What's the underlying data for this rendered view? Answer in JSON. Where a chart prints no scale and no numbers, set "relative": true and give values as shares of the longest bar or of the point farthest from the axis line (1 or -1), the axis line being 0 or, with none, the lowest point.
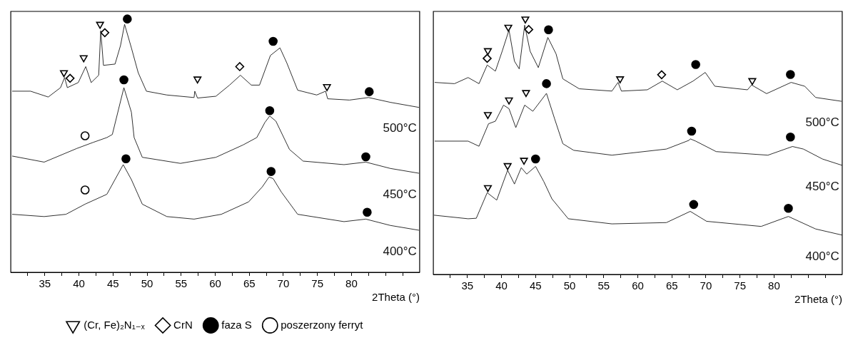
{
  "chart_data": [
    {
      "type": "line",
      "relative": true,
      "xlabel": "2Theta (°)",
      "xlim": [
        30,
        90
      ],
      "xticks": [
        {
          "value": 32.5,
          "label": null
        },
        35,
        {
          "value": 37.5,
          "label": null
        },
        40,
        {
          "value": 42.5,
          "label": null
        },
        45,
        {
          "value": 47.5,
          "label": null
        },
        50,
        {
          "value": 52.5,
          "label": null
        },
        55,
        {
          "value": 57.5,
          "label": null
        },
        60,
        {
          "value": 62.5,
          "label": null
        },
        65,
        {
          "value": 67.5,
          "label": null
        },
        70,
        {
          "value": 72.5,
          "label": null
        },
        75,
        {
          "value": 77.5,
          "label": null
        },
        80,
        {
          "value": 82.5,
          "label": null
        },
        {
          "value": 85,
          "label": null
        },
        {
          "value": 87.5,
          "label": null
        }
      ],
      "legend": "bottom",
      "series": [
        {
          "name": "500°C",
          "color": "#1a1a1a",
          "x": [
            30.2,
            32.9,
            35.5,
            37.3,
            37.9,
            38.3,
            39.9,
            41.0,
            41.8,
            42.9,
            43.2,
            43.6,
            45.3,
            46.1,
            46.7,
            47.7,
            48.7,
            49.9,
            52.9,
            56.9,
            57.0,
            57.4,
            60.1,
            62.1,
            63.7,
            65.3,
            66.5,
            68.1,
            69.5,
            70.5,
            72.1,
            74.9,
            76.2,
            76.5,
            79.7,
            82.5,
            85.7,
            89.9
          ],
          "values": [
            0.715,
            0.715,
            0.692,
            0.729,
            0.769,
            0.729,
            0.749,
            0.812,
            0.749,
            0.778,
            0.954,
            0.817,
            0.822,
            0.895,
            0.979,
            0.886,
            0.788,
            0.715,
            0.7,
            0.69,
            0.715,
            0.688,
            0.695,
            0.739,
            0.778,
            0.739,
            0.739,
            0.856,
            0.886,
            0.827,
            0.719,
            0.7,
            0.715,
            0.685,
            0.68,
            0.69,
            0.671,
            0.651
          ]
        },
        {
          "name": "450°C",
          "color": "#1a1a1a",
          "x": [
            30.2,
            34.9,
            39.7,
            42.1,
            44.1,
            44.9,
            46.6,
            47.7,
            48.1,
            49.3,
            54.9,
            60.1,
            64.1,
            66.1,
            67.3,
            68.0,
            68.9,
            70.9,
            72.9,
            78.9,
            82.1,
            85.7,
            89.9
          ],
          "values": [
            0.459,
            0.435,
            0.489,
            0.513,
            0.532,
            0.544,
            0.729,
            0.632,
            0.532,
            0.454,
            0.43,
            0.454,
            0.503,
            0.532,
            0.592,
            0.617,
            0.597,
            0.485,
            0.439,
            0.425,
            0.435,
            0.41,
            0.391
          ]
        },
        {
          "name": "400°C",
          "color": "#1a1a1a",
          "x": [
            30.2,
            34.9,
            38.1,
            40.9,
            44.1,
            46.5,
            47.7,
            49.3,
            52.9,
            56.9,
            60.9,
            64.9,
            66.9,
            67.9,
            68.5,
            69.7,
            72.1,
            78.9,
            82.1,
            85.7,
            89.9
          ],
          "values": [
            0.229,
            0.22,
            0.229,
            0.269,
            0.308,
            0.425,
            0.366,
            0.269,
            0.22,
            0.21,
            0.229,
            0.278,
            0.337,
            0.376,
            0.37,
            0.317,
            0.229,
            0.2,
            0.21,
            0.185,
            0.166
          ]
        },
        {
          "type": "scatter",
          "name": "(Cr, Fe)₂N₁₋ₓ",
          "marker": "triangle",
          "color": "#ffffff",
          "x": [
            37.8,
            40.7,
            43.1,
            57.4,
            76.4
          ],
          "values": [
            0.788,
            0.847,
            0.979,
            0.763,
            0.733
          ]
        },
        {
          "type": "scatter",
          "name": "CrN",
          "marker": "diamond",
          "color": "#ffffff",
          "x": [
            38.7,
            43.8,
            63.6
          ],
          "values": [
            0.766,
            0.946,
            0.812
          ]
        },
        {
          "type": "scatter",
          "name": "faza S",
          "marker": "circle",
          "color": "#000000",
          "x": [
            47.1,
            68.5,
            82.6,
            46.6,
            68.0,
            82.1,
            46.9,
            68.2,
            82.3
          ],
          "values": [
            1.0,
            0.912,
            0.713,
            0.76,
            0.638,
            0.456,
            0.448,
            0.398,
            0.237
          ]
        },
        {
          "type": "scatter",
          "name": "poszerzony ferryt",
          "marker": "circle",
          "color": "#ffffff",
          "x": [
            40.9,
            40.9
          ],
          "values": [
            0.539,
            0.325
          ]
        }
      ]
    },
    {
      "type": "line",
      "relative": true,
      "xlabel": "2Theta (°)",
      "xlim": [
        30,
        90
      ],
      "xticks": [
        {
          "value": 32.5,
          "label": null
        },
        35,
        {
          "value": 37.5,
          "label": null
        },
        40,
        {
          "value": 42.5,
          "label": null
        },
        45,
        {
          "value": 47.5,
          "label": null
        },
        50,
        {
          "value": 52.5,
          "label": null
        },
        55,
        {
          "value": 57.5,
          "label": null
        },
        60,
        {
          "value": 62.5,
          "label": null
        },
        65,
        {
          "value": 67.5,
          "label": null
        },
        70,
        {
          "value": 72.5,
          "label": null
        },
        75,
        {
          "value": 77.5,
          "label": null
        },
        80,
        {
          "value": 82.5,
          "label": null
        },
        {
          "value": 85,
          "label": null
        },
        {
          "value": 87.5,
          "label": null
        }
      ],
      "series": [
        {
          "name": "500°C",
          "color": "#1a1a1a",
          "x": [
            30.2,
            33.1,
            35.1,
            36.7,
            37.9,
            39.1,
            40.1,
            41.1,
            41.9,
            42.6,
            43.4,
            44.2,
            45.4,
            46.8,
            48.0,
            49.0,
            51.4,
            56.2,
            57.1,
            57.6,
            61.4,
            63.6,
            65.8,
            68.1,
            69.9,
            71.3,
            76.1,
            76.7,
            78.9,
            82.5,
            84.5,
            86.1,
            89.9
          ],
          "values": [
            0.752,
            0.747,
            0.771,
            0.747,
            0.82,
            0.796,
            0.874,
            0.957,
            0.835,
            0.805,
            0.976,
            0.874,
            0.81,
            0.928,
            0.864,
            0.766,
            0.727,
            0.718,
            0.752,
            0.718,
            0.723,
            0.757,
            0.723,
            0.757,
            0.791,
            0.737,
            0.723,
            0.742,
            0.708,
            0.752,
            0.737,
            0.693,
            0.678
          ]
        },
        {
          "name": "450°C",
          "color": "#1a1a1a",
          "x": [
            30.2,
            35.1,
            36.7,
            38.1,
            39.1,
            40.3,
            41.1,
            42.1,
            43.4,
            44.6,
            46.6,
            47.8,
            49.0,
            50.6,
            56.2,
            64.2,
            67.5,
            67.7,
            68.5,
            71.5,
            79.1,
            82.7,
            84.3,
            87.1,
            90.0
          ],
          "values": [
            0.522,
            0.522,
            0.502,
            0.59,
            0.6,
            0.663,
            0.649,
            0.575,
            0.663,
            0.639,
            0.709,
            0.609,
            0.512,
            0.486,
            0.467,
            0.491,
            0.525,
            0.531,
            0.522,
            0.481,
            0.467,
            0.501,
            0.491,
            0.452,
            0.427
          ]
        },
        {
          "name": "400°C",
          "color": "#1a1a1a",
          "x": [
            30.1,
            35.1,
            36.3,
            37.9,
            39.3,
            40.9,
            41.9,
            42.9,
            43.7,
            45.0,
            46.2,
            47.4,
            49.8,
            56.2,
            64.2,
            67.7,
            70.1,
            78.1,
            82.1,
            86.1,
            90.0
          ],
          "values": [
            0.232,
            0.218,
            0.22,
            0.32,
            0.291,
            0.408,
            0.354,
            0.418,
            0.393,
            0.423,
            0.364,
            0.296,
            0.218,
            0.198,
            0.203,
            0.247,
            0.208,
            0.188,
            0.227,
            0.178,
            0.154
          ]
        },
        {
          "type": "scatter",
          "marker": "triangle",
          "color": "#ffffff",
          "x": [
            38.0,
            41.0,
            43.5,
            57.4,
            76.8,
            38.0,
            41.1,
            43.6,
            38.0,
            40.9,
            43.3
          ],
          "values": [
            0.876,
            0.968,
            1.0,
            0.766,
            0.759,
            0.626,
            0.683,
            0.712,
            0.34,
            0.426,
            0.447
          ]
        },
        {
          "type": "scatter",
          "marker": "diamond",
          "color": "#ffffff",
          "x": [
            37.9,
            44.0,
            63.5
          ],
          "values": [
            0.846,
            0.959,
            0.782
          ]
        },
        {
          "type": "scatter",
          "marker": "circle",
          "color": "#000000",
          "x": [
            46.9,
            68.5,
            82.4,
            46.6,
            67.9,
            82.4,
            45.0,
            68.2,
            82.1
          ],
          "values": [
            0.958,
            0.822,
            0.783,
            0.747,
            0.561,
            0.538,
            0.452,
            0.274,
            0.259
          ]
        }
      ]
    }
  ]
}
